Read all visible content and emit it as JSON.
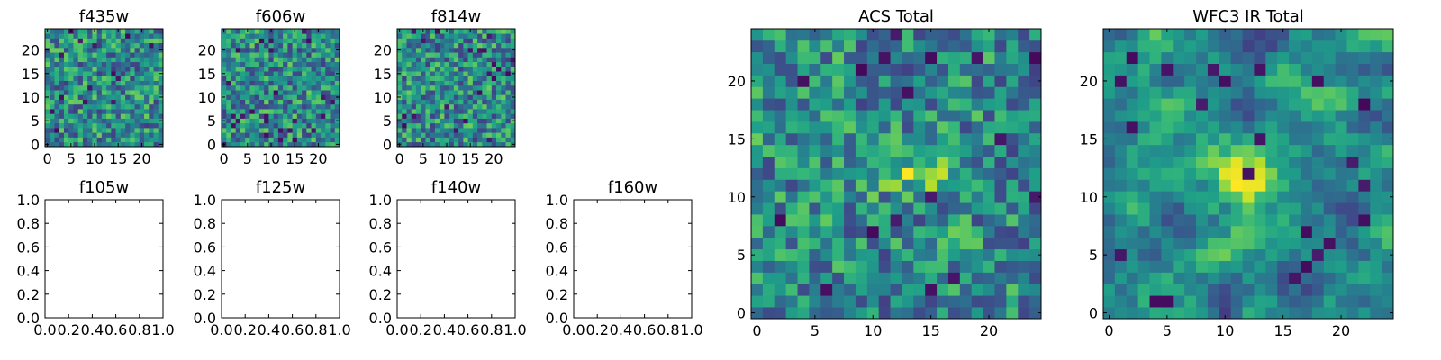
{
  "chart_data": [
    {
      "id": "f435w",
      "type": "heatmap",
      "title": "f435w",
      "grid": false,
      "size": 25,
      "xlim": [
        -0.5,
        24.5
      ],
      "ylim": [
        -0.5,
        24.5
      ],
      "xticks": [
        0,
        5,
        10,
        15,
        20
      ],
      "yticks": [
        0,
        5,
        10,
        15,
        20
      ],
      "xticklabels": [
        "0",
        "5",
        "10",
        "15",
        "20"
      ],
      "yticklabels": [
        "0",
        "5",
        "10",
        "15",
        "20"
      ],
      "value_range": [
        0,
        1
      ],
      "colormap": "viridis",
      "seed": 11,
      "smooth": 0,
      "blobs": []
    },
    {
      "id": "f606w",
      "type": "heatmap",
      "title": "f606w",
      "grid": false,
      "size": 25,
      "xlim": [
        -0.5,
        24.5
      ],
      "ylim": [
        -0.5,
        24.5
      ],
      "xticks": [
        0,
        5,
        10,
        15,
        20
      ],
      "yticks": [
        0,
        5,
        10,
        15,
        20
      ],
      "xticklabels": [
        "0",
        "5",
        "10",
        "15",
        "20"
      ],
      "yticklabels": [
        "0",
        "5",
        "10",
        "15",
        "20"
      ],
      "value_range": [
        0,
        1
      ],
      "colormap": "viridis",
      "seed": 23,
      "smooth": 0,
      "blobs": []
    },
    {
      "id": "f814w",
      "type": "heatmap",
      "title": "f814w",
      "grid": false,
      "size": 25,
      "xlim": [
        -0.5,
        24.5
      ],
      "ylim": [
        -0.5,
        24.5
      ],
      "xticks": [
        0,
        5,
        10,
        15,
        20
      ],
      "yticks": [
        0,
        5,
        10,
        15,
        20
      ],
      "xticklabels": [
        "0",
        "5",
        "10",
        "15",
        "20"
      ],
      "yticklabels": [
        "0",
        "5",
        "10",
        "15",
        "20"
      ],
      "value_range": [
        0,
        1
      ],
      "colormap": "viridis",
      "seed": 37,
      "smooth": 0,
      "blobs": []
    },
    {
      "id": "f105w",
      "type": "heatmap",
      "title": "f105w",
      "grid": false,
      "empty": true,
      "xlim": [
        0,
        1
      ],
      "ylim": [
        0,
        1
      ],
      "xticks": [
        0,
        0.2,
        0.4,
        0.6,
        0.8,
        1.0
      ],
      "yticks": [
        0,
        0.2,
        0.4,
        0.6,
        0.8,
        1.0
      ],
      "xticklabels": [
        "0.0",
        "0.2",
        "0.4",
        "0.6",
        "0.8",
        "1.0"
      ],
      "yticklabels": [
        "0.0",
        "0.2",
        "0.4",
        "0.6",
        "0.8",
        "1.0"
      ]
    },
    {
      "id": "f125w",
      "type": "heatmap",
      "title": "f125w",
      "grid": false,
      "empty": true,
      "xlim": [
        0,
        1
      ],
      "ylim": [
        0,
        1
      ],
      "xticks": [
        0,
        0.2,
        0.4,
        0.6,
        0.8,
        1.0
      ],
      "yticks": [
        0,
        0.2,
        0.4,
        0.6,
        0.8,
        1.0
      ],
      "xticklabels": [
        "0.0",
        "0.2",
        "0.4",
        "0.6",
        "0.8",
        "1.0"
      ],
      "yticklabels": [
        "0.0",
        "0.2",
        "0.4",
        "0.6",
        "0.8",
        "1.0"
      ]
    },
    {
      "id": "f140w",
      "type": "heatmap",
      "title": "f140w",
      "grid": false,
      "empty": true,
      "xlim": [
        0,
        1
      ],
      "ylim": [
        0,
        1
      ],
      "xticks": [
        0,
        0.2,
        0.4,
        0.6,
        0.8,
        1.0
      ],
      "yticks": [
        0,
        0.2,
        0.4,
        0.6,
        0.8,
        1.0
      ],
      "xticklabels": [
        "0.0",
        "0.2",
        "0.4",
        "0.6",
        "0.8",
        "1.0"
      ],
      "yticklabels": [
        "0.0",
        "0.2",
        "0.4",
        "0.6",
        "0.8",
        "1.0"
      ]
    },
    {
      "id": "f160w",
      "type": "heatmap",
      "title": "f160w",
      "grid": false,
      "empty": true,
      "xlim": [
        0,
        1
      ],
      "ylim": [
        0,
        1
      ],
      "xticks": [
        0,
        0.2,
        0.4,
        0.6,
        0.8,
        1.0
      ],
      "yticks": [
        0,
        0.2,
        0.4,
        0.6,
        0.8,
        1.0
      ],
      "xticklabels": [
        "0.0",
        "0.2",
        "0.4",
        "0.6",
        "0.8",
        "1.0"
      ],
      "yticklabels": [
        "0.0",
        "0.2",
        "0.4",
        "0.6",
        "0.8",
        "1.0"
      ]
    },
    {
      "id": "acs-total",
      "type": "heatmap",
      "title": "ACS Total",
      "grid": false,
      "size": 25,
      "xlim": [
        -0.5,
        24.5
      ],
      "ylim": [
        -0.5,
        24.5
      ],
      "xticks": [
        0,
        5,
        10,
        15,
        20
      ],
      "yticks": [
        0,
        5,
        10,
        15,
        20
      ],
      "xticklabels": [
        "0",
        "5",
        "10",
        "15",
        "20"
      ],
      "yticklabels": [
        "0",
        "5",
        "10",
        "15",
        "20"
      ],
      "value_range": [
        0,
        1
      ],
      "colormap": "viridis",
      "seed": 53,
      "smooth": 0.15,
      "blobs": [
        {
          "x": 14,
          "y": 12,
          "sx": 3.5,
          "sy": 1.0,
          "amp": 0.3
        }
      ]
    },
    {
      "id": "wfc3-ir-total",
      "type": "heatmap",
      "title": "WFC3 IR Total",
      "grid": false,
      "size": 25,
      "xlim": [
        -0.5,
        24.5
      ],
      "ylim": [
        -0.5,
        24.5
      ],
      "xticks": [
        0,
        5,
        10,
        15,
        20
      ],
      "yticks": [
        0,
        5,
        10,
        15,
        20
      ],
      "xticklabels": [
        "0",
        "5",
        "10",
        "15",
        "20"
      ],
      "yticklabels": [
        "0",
        "5",
        "10",
        "15",
        "20"
      ],
      "value_range": [
        0,
        1
      ],
      "colormap": "viridis",
      "seed": 71,
      "smooth": 0.55,
      "blobs": [
        {
          "x": 12.5,
          "y": 11.5,
          "sx": 2.8,
          "sy": 1.6,
          "amp": 0.5
        }
      ]
    }
  ]
}
